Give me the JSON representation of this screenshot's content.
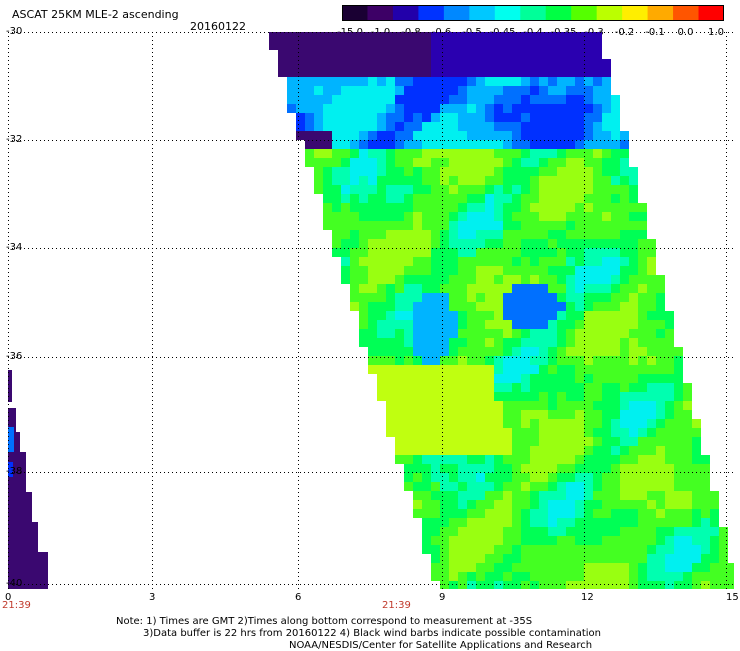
{
  "header": {
    "title": "ASCAT 25KM MLE-2 ascending",
    "date": "20160122"
  },
  "colorbar": {
    "labels": [
      "-15.0",
      "-1.0",
      "-0.8",
      "-0.6",
      "-0.5",
      "-0.45",
      "-0.4",
      "-0.35",
      "-0.3",
      "-0.2",
      "-0.1",
      "0.0",
      "1.0"
    ],
    "colors": [
      "#1a0033",
      "#3d0066",
      "#2200aa",
      "#0033ff",
      "#0088ff",
      "#00c8ff",
      "#00ffee",
      "#00ff99",
      "#00ff44",
      "#55ff00",
      "#bbff00",
      "#ffee00",
      "#ffaa00",
      "#ff5500",
      "#ff0000"
    ]
  },
  "map": {
    "lat_labels": [
      "-30",
      "-32",
      "-34",
      "-36",
      "-38",
      "-40"
    ],
    "lon_labels": [
      "0",
      "3",
      "6",
      "9",
      "12",
      "15"
    ],
    "times": [
      "21:39",
      "21:39"
    ]
  },
  "notes": {
    "line1": "Note: 1) Times are GMT 2)Times along bottom correspond to measurement at -35S",
    "line2": "3)Data buffer is 22 hrs from 20160122 4) Black wind barbs indicate possible contamination",
    "line3": "NOAA/NESDIS/Center for Satellite Applications and Research"
  }
}
